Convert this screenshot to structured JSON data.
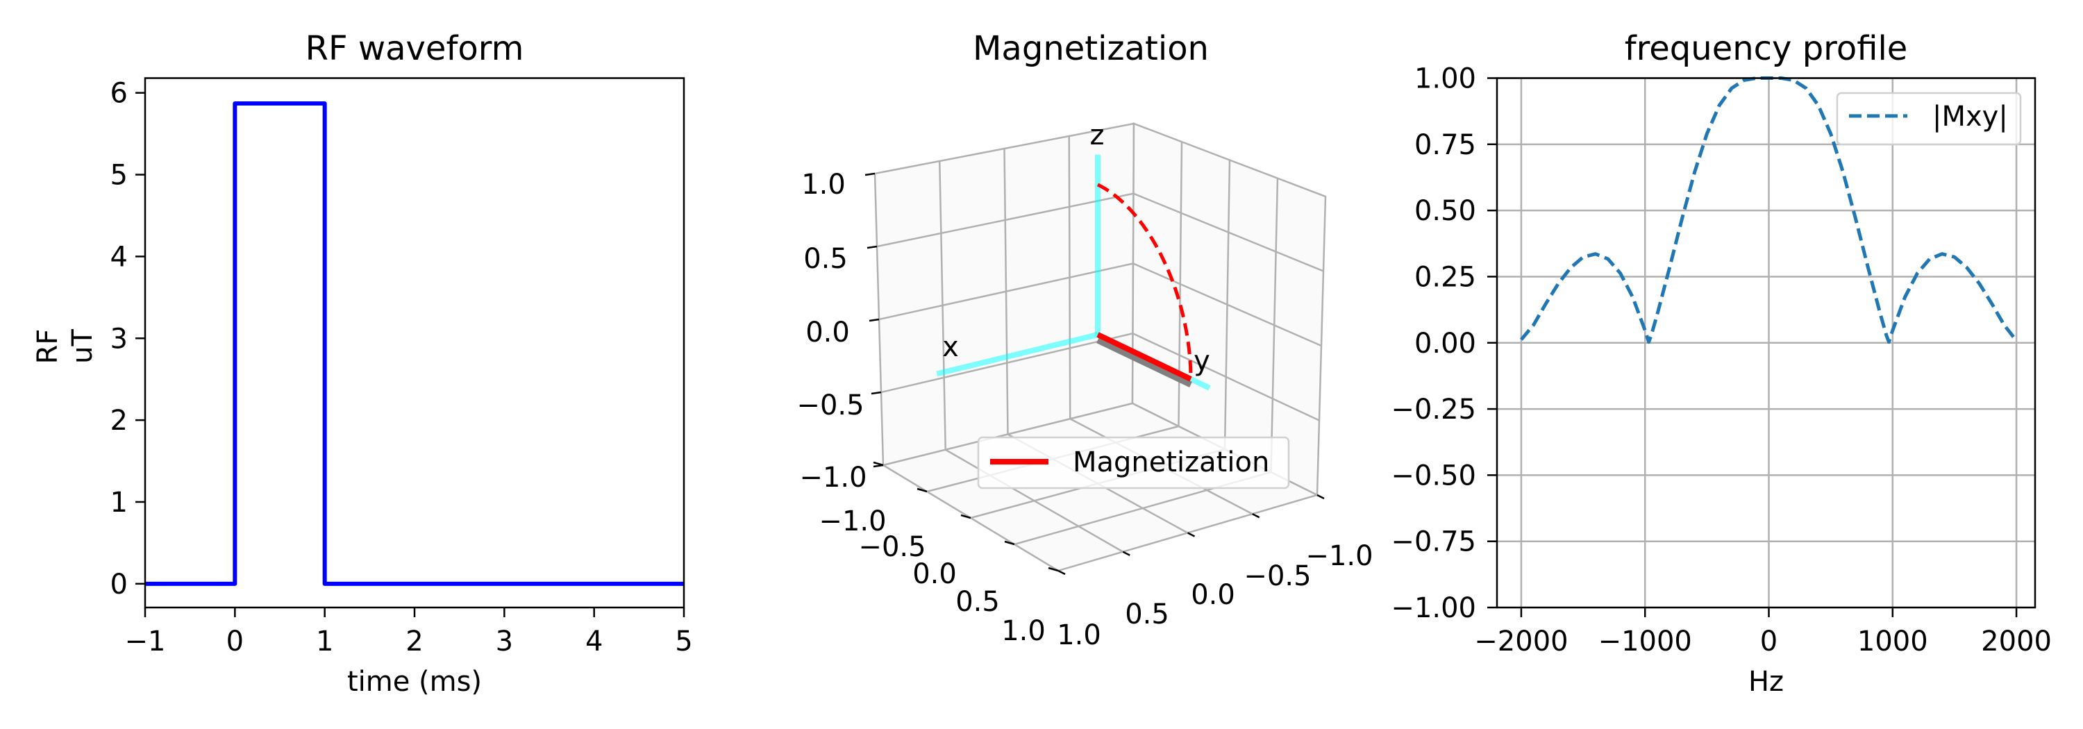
{
  "chart_data": [
    {
      "type": "line",
      "title": "RF waveform",
      "xlabel": "time (ms)",
      "ylabel": [
        "RF",
        "uT"
      ],
      "xlim": [
        -1,
        5
      ],
      "ylim": [
        -0.29,
        6.18
      ],
      "xticks": [
        "−1",
        "0",
        "1",
        "2",
        "3",
        "4",
        "5"
      ],
      "xtick_values": [
        -1,
        0,
        1,
        2,
        3,
        4,
        5
      ],
      "yticks": [
        "0",
        "1",
        "2",
        "3",
        "4",
        "5",
        "6"
      ],
      "ytick_values": [
        0,
        1,
        2,
        3,
        4,
        5,
        6
      ],
      "grid": false,
      "color": "#0000ff",
      "x": [
        -1,
        0,
        0,
        1,
        1,
        5
      ],
      "y": [
        0,
        0,
        5.87,
        5.87,
        0,
        0
      ]
    },
    {
      "type": "3d-line",
      "title": "Magnetization",
      "axis_letters": [
        "x",
        "y",
        "z"
      ],
      "xlim": [
        -1,
        1
      ],
      "ylim": [
        -1,
        1
      ],
      "zlim": [
        -1,
        1
      ],
      "xticks": [
        "−1.0",
        "−0.5",
        "0.0",
        "0.5",
        "1.0"
      ],
      "yticks": [
        "1.0",
        "0.5",
        "0.0",
        "−0.5",
        "−1.0"
      ],
      "zticks": [
        "1.0",
        "0.5",
        "0.0",
        "−0.5",
        "−1.0"
      ],
      "grid": true,
      "legend": {
        "label": "Magnetization",
        "placement": "lower center"
      },
      "magnetization_color": "#ff0000",
      "axes_color": "#00ffff",
      "final_vector": [
        0,
        1,
        0
      ],
      "trajectory": {
        "start": [
          0,
          0,
          1
        ],
        "end": [
          0,
          1,
          0
        ],
        "style": "dashed"
      }
    },
    {
      "type": "line",
      "title": "frequency profile",
      "xlabel": "Hz",
      "xlim": [
        -2196,
        2151
      ],
      "ylim": [
        -1,
        1
      ],
      "xticks": [
        "−2000",
        "−1000",
        "0",
        "1000",
        "2000"
      ],
      "xtick_values": [
        -2000,
        -1000,
        0,
        1000,
        2000
      ],
      "yticks": [
        "1.00",
        "0.75",
        "0.50",
        "0.25",
        "0.00",
        "−0.25",
        "−0.50",
        "−0.75",
        "−1.00"
      ],
      "ytick_values": [
        1,
        0.75,
        0.5,
        0.25,
        0,
        -0.25,
        -0.5,
        -0.75,
        -1
      ],
      "grid": true,
      "legend": {
        "label": "|Mxy|",
        "placement": "upper right"
      },
      "color": "#1f77b4",
      "series": [
        {
          "name": "|Mxy|",
          "x": [
            -2000,
            -1900,
            -1800,
            -1700,
            -1600,
            -1500,
            -1400,
            -1300,
            -1200,
            -1100,
            -1000,
            -970,
            -950,
            -900,
            -800,
            -700,
            -600,
            -500,
            -400,
            -300,
            -200,
            -100,
            0,
            100,
            200,
            300,
            400,
            500,
            600,
            700,
            800,
            900,
            950,
            970,
            1000,
            1100,
            1200,
            1300,
            1400,
            1500,
            1600,
            1700,
            1800,
            1900,
            1980
          ],
          "y": [
            0.012,
            0.068,
            0.149,
            0.224,
            0.284,
            0.324,
            0.336,
            0.317,
            0.263,
            0.173,
            0.047,
            0.003,
            0.028,
            0.11,
            0.287,
            0.471,
            0.644,
            0.79,
            0.897,
            0.962,
            0.992,
            1.0,
            1.0,
            1.0,
            0.992,
            0.962,
            0.897,
            0.79,
            0.644,
            0.471,
            0.287,
            0.11,
            0.028,
            0.003,
            0.047,
            0.173,
            0.263,
            0.317,
            0.336,
            0.324,
            0.284,
            0.224,
            0.149,
            0.068,
            0.02
          ]
        }
      ]
    }
  ]
}
